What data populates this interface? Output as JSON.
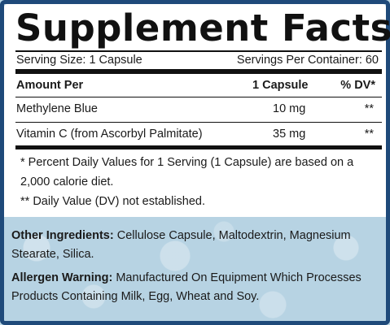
{
  "label": {
    "title": "Supplement Facts",
    "serving_size": "Serving Size: 1 Capsule",
    "servings_per_container": "Servings Per Container: 60",
    "header": {
      "amount_per": "Amount Per",
      "capsule": "1 Capsule",
      "dv": "% DV*"
    },
    "rows": [
      {
        "name": "Methylene Blue",
        "amount": "10 mg",
        "dv": "**"
      },
      {
        "name": "Vitamin C (from Ascorbyl Palmitate)",
        "amount": "35 mg",
        "dv": "**"
      }
    ],
    "footnote_1_line1": "* Percent Daily Values for 1 Serving (1 Capsule) are based on a",
    "footnote_1_line2": "2,000 calorie diet.",
    "footnote_2": "** Daily Value (DV) not established."
  },
  "other_ingredients": {
    "label": "Other Ingredients:",
    "text_line1": " Cellulose Capsule, Maltodextrin, Magnesium",
    "text_line2": "Stearate, Silica."
  },
  "allergen_warning": {
    "label": "Allergen Warning:",
    "text_line1": " Manufactured On Equipment Which Processes",
    "text_line2": "Products Containing Milk, Egg, Wheat and Soy."
  },
  "colors": {
    "border": "#1f4a7a",
    "background": "#b7d3e3",
    "panel": "#ffffff",
    "text": "#111111"
  }
}
